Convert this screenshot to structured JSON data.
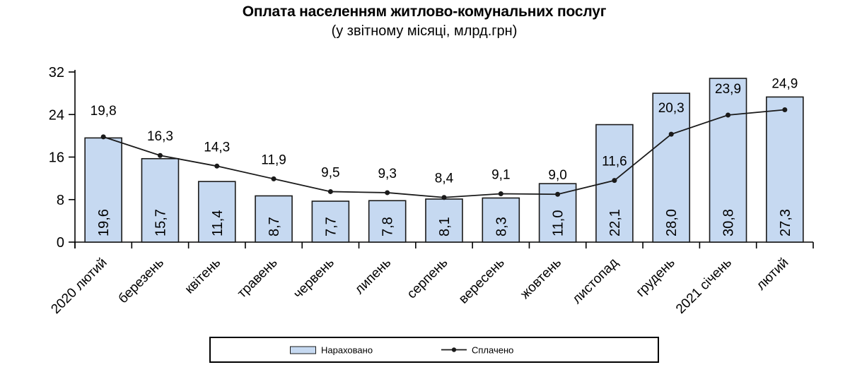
{
  "title": "Оплата населенням житлово-комунальних послуг",
  "subtitle": "(у звітному місяці, млрд.грн)",
  "legend": {
    "accrued_label": "Нараховано",
    "paid_label": "Сплачено"
  },
  "colors": {
    "bar_fill": "#C6D9F1",
    "bar_border": "#1a1a1a",
    "line": "#1a1a1a",
    "axis": "#000000",
    "text": "#000000"
  },
  "chart_data": {
    "type": "bar+line",
    "title": "Оплата населенням житлово-комунальних послуг",
    "subtitle": "(у звітному місяці, млрд.грн)",
    "categories": [
      "2020 лютий",
      "березень",
      "квітень",
      "травень",
      "червень",
      "липень",
      "серпень",
      "вересень",
      "жовтень",
      "листопад",
      "грудень",
      "2021 січень",
      "лютий"
    ],
    "series": [
      {
        "name": "Нараховано",
        "type": "bar",
        "values": [
          19.6,
          15.7,
          11.4,
          8.7,
          7.7,
          7.8,
          8.1,
          8.3,
          11.0,
          22.1,
          28.0,
          30.8,
          27.3
        ],
        "labels": [
          "19,6",
          "15,7",
          "11,4",
          "8,7",
          "7,7",
          "7,8",
          "8,1",
          "8,3",
          "11,0",
          "22,1",
          "28,0",
          "30,8",
          "27,3"
        ]
      },
      {
        "name": "Сплачено",
        "type": "line",
        "values": [
          19.8,
          16.3,
          14.3,
          11.9,
          9.5,
          9.3,
          8.4,
          9.1,
          9.0,
          11.6,
          20.3,
          23.9,
          24.9
        ],
        "labels": [
          "19,8",
          "16,3",
          "14,3",
          "11,9",
          "9,5",
          "9,3",
          "8,4",
          "9,1",
          "9,0",
          "11,6",
          "20,3",
          "23,9",
          "24,9"
        ]
      }
    ],
    "xlabel": "",
    "ylabel": "",
    "ylim": [
      0,
      32
    ],
    "yticks": [
      0,
      8,
      16,
      24,
      32
    ],
    "grid": false,
    "legend_position": "bottom"
  }
}
